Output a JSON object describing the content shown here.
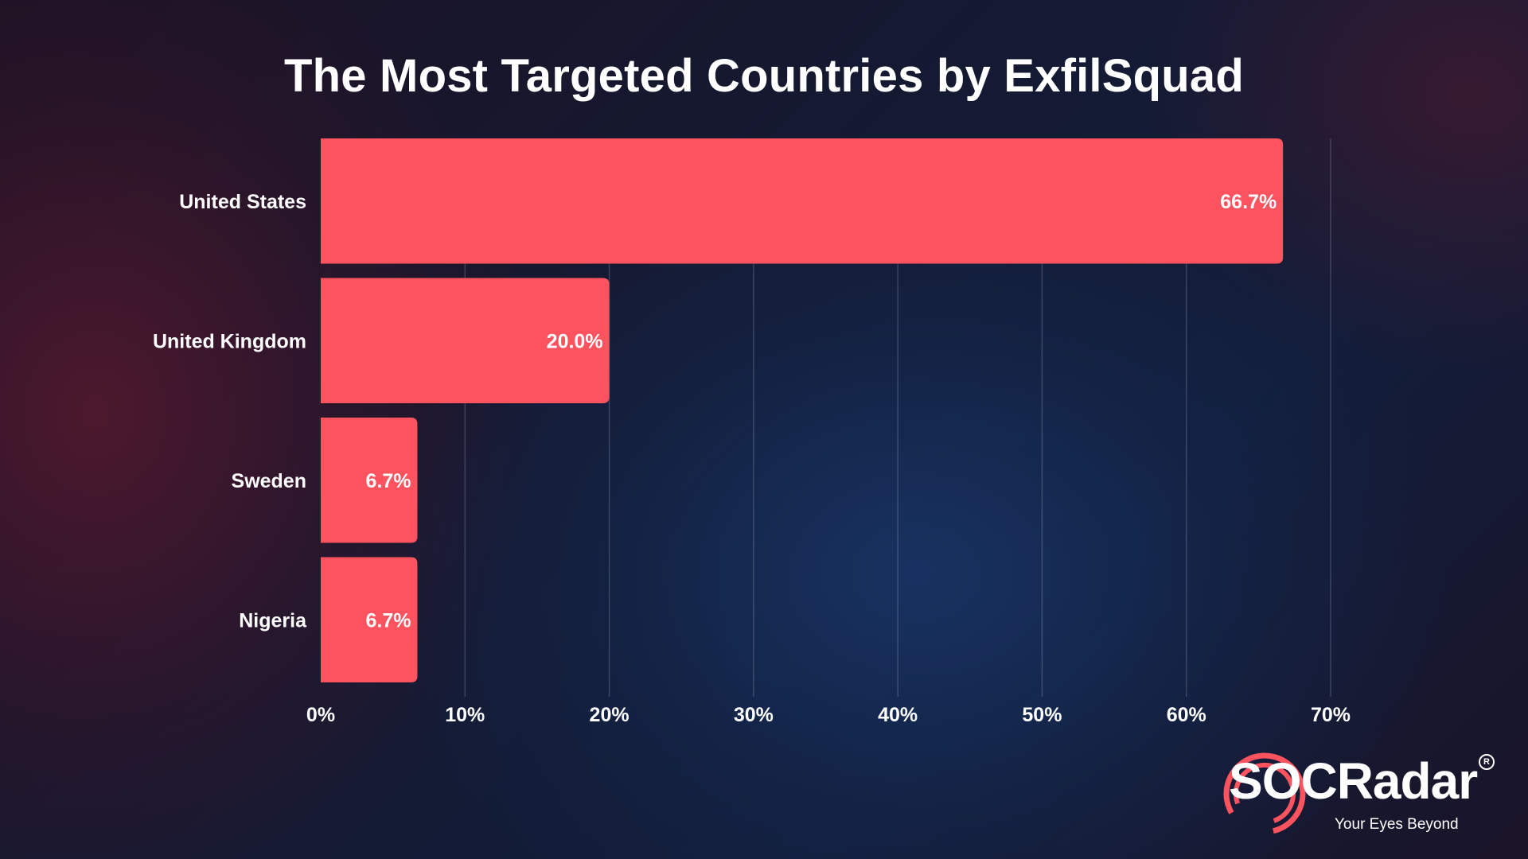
{
  "chart_data": {
    "type": "bar",
    "orientation": "horizontal",
    "title": "The Most Targeted Countries by ExfilSquad",
    "categories": [
      "United States",
      "United Kingdom",
      "Sweden",
      "Nigeria"
    ],
    "values": [
      66.7,
      20.0,
      6.7,
      6.7
    ],
    "data_labels": [
      "66.7%",
      "20.0%",
      "6.7%",
      "6.7%"
    ],
    "xlim": [
      0,
      70
    ],
    "x_ticks": [
      0,
      10,
      20,
      30,
      40,
      50,
      60,
      70
    ],
    "x_tick_labels": [
      "0%",
      "10%",
      "20%",
      "30%",
      "40%",
      "50%",
      "60%",
      "70%"
    ],
    "xlabel": "",
    "ylabel": "",
    "grid": "vertical",
    "legend": "none",
    "bar_color": "#fc535f"
  },
  "logo": {
    "wordmark": "SOCRadar",
    "tagline": "Your Eyes Beyond",
    "registered": "R",
    "accent_color": "#fc535f"
  }
}
